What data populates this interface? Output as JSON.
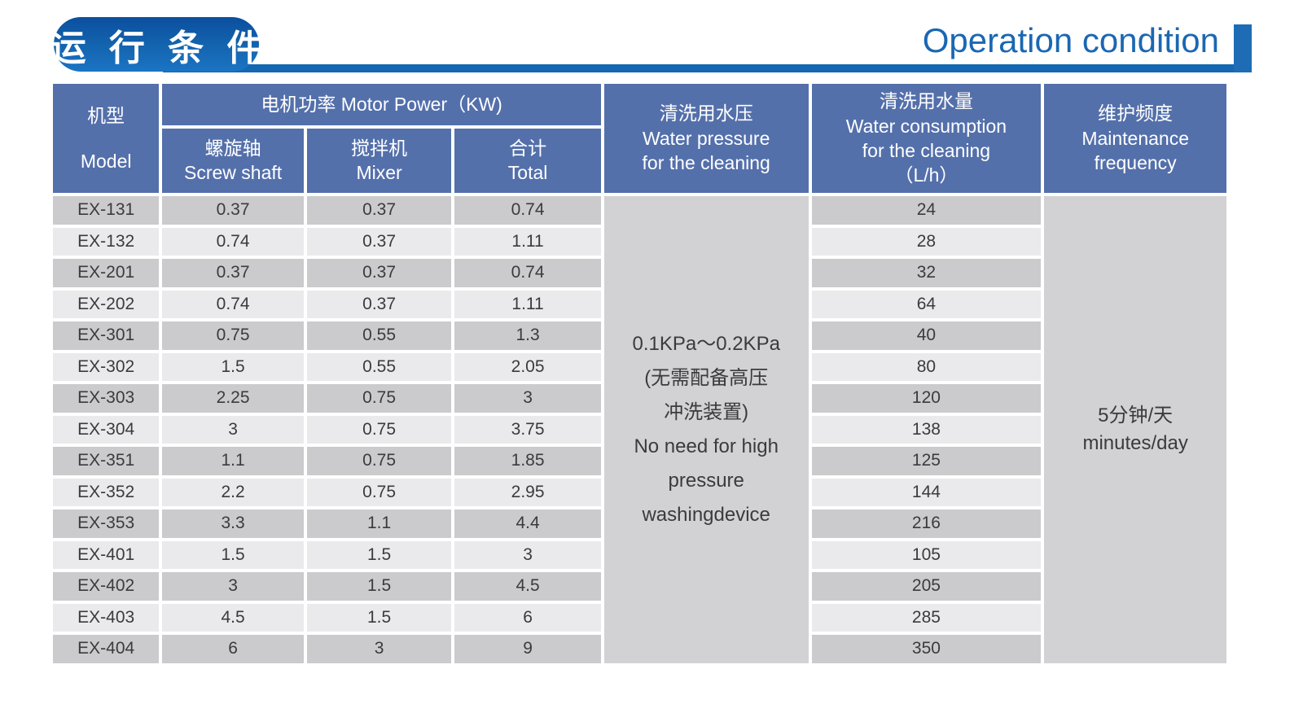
{
  "banner": {
    "title_zh": "运 行 条 件",
    "title_en": "Operation condition",
    "pill_gradient_top": "#0b4f9f",
    "pill_gradient_bottom": "#1b74c5",
    "rule_color": "#1467b2",
    "title_en_color": "#1b67b2"
  },
  "table": {
    "colors": {
      "header_bg": "#5470ab",
      "row_dark": "#cbcacd",
      "row_light": "#eaeaec",
      "merged_bg": "#d2d1d4",
      "text": "#3b3b3d"
    },
    "header": {
      "model_zh": "机型",
      "model_en": "Model",
      "motor_power": "电机功率  Motor Power（KW)",
      "screw_zh": "螺旋轴",
      "screw_en": "Screw shaft",
      "mixer_zh": "搅拌机",
      "mixer_en": "Mixer",
      "total_zh": "合计",
      "total_en": "Total",
      "pressure_zh": "清洗用水压",
      "pressure_en_line1": "Water pressure",
      "pressure_en_line2": "for the cleaning",
      "consumption_zh": "清洗用水量",
      "consumption_en_line1": "Water consumption",
      "consumption_en_line2": "for the cleaning",
      "consumption_unit": "（L/h）",
      "maintenance_zh": "维护频度",
      "maintenance_en_line1": "Maintenance",
      "maintenance_en_line2": "frequency"
    },
    "pressure_cell_lines": [
      "0.1KPa～0.2KPa",
      "(无需配备高压",
      "冲洗装置)",
      "No need for high",
      "pressure",
      "washingdevice"
    ],
    "maintenance_cell_lines": [
      "5分钟/天",
      "minutes/day"
    ],
    "rows": [
      {
        "model": "EX-131",
        "screw": "0.37",
        "mixer": "0.37",
        "total": "0.74",
        "water": "24"
      },
      {
        "model": "EX-132",
        "screw": "0.74",
        "mixer": "0.37",
        "total": "1.11",
        "water": "28"
      },
      {
        "model": "EX-201",
        "screw": "0.37",
        "mixer": "0.37",
        "total": "0.74",
        "water": "32"
      },
      {
        "model": "EX-202",
        "screw": "0.74",
        "mixer": "0.37",
        "total": "1.11",
        "water": "64"
      },
      {
        "model": "EX-301",
        "screw": "0.75",
        "mixer": "0.55",
        "total": "1.3",
        "water": "40"
      },
      {
        "model": "EX-302",
        "screw": "1.5",
        "mixer": "0.55",
        "total": "2.05",
        "water": "80"
      },
      {
        "model": "EX-303",
        "screw": "2.25",
        "mixer": "0.75",
        "total": "3",
        "water": "120"
      },
      {
        "model": "EX-304",
        "screw": "3",
        "mixer": "0.75",
        "total": "3.75",
        "water": "138"
      },
      {
        "model": "EX-351",
        "screw": "1.1",
        "mixer": "0.75",
        "total": "1.85",
        "water": "125"
      },
      {
        "model": "EX-352",
        "screw": "2.2",
        "mixer": "0.75",
        "total": "2.95",
        "water": "144"
      },
      {
        "model": "EX-353",
        "screw": "3.3",
        "mixer": "1.1",
        "total": "4.4",
        "water": "216"
      },
      {
        "model": "EX-401",
        "screw": "1.5",
        "mixer": "1.5",
        "total": "3",
        "water": "105"
      },
      {
        "model": "EX-402",
        "screw": "3",
        "mixer": "1.5",
        "total": "4.5",
        "water": "205"
      },
      {
        "model": "EX-403",
        "screw": "4.5",
        "mixer": "1.5",
        "total": "6",
        "water": "285"
      },
      {
        "model": "EX-404",
        "screw": "6",
        "mixer": "3",
        "total": "9",
        "water": "350"
      }
    ]
  }
}
